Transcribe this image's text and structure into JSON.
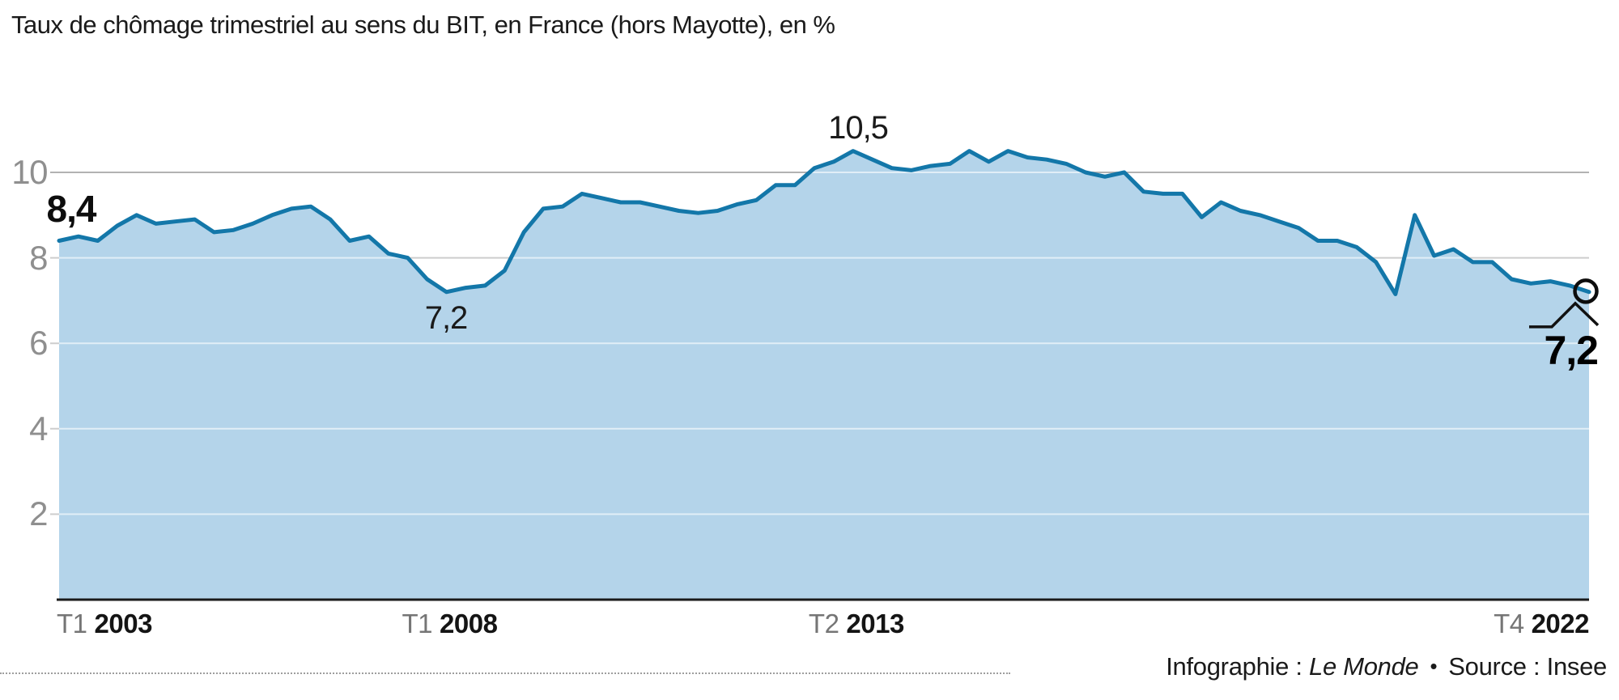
{
  "title": "Taux de chômage trimestriel au sens du BIT, en France (hors Mayotte), en %",
  "footer": {
    "credit_prefix": "Infographie : ",
    "credit_brand": "Le Monde",
    "separator": "•",
    "source_label": "Source : Insee"
  },
  "colors": {
    "line": "#1377a9",
    "fill": "#b4d4ea",
    "grid_major": "#b2b2b2",
    "grid_minor": "#cdcdcd",
    "grid_overlay": "rgba(255,255,255,0.6)",
    "axis": "#1a1a1a",
    "y_tick_text": "#8f8f8f",
    "x_tick_prefix": "#757575",
    "x_tick_year": "#141414",
    "annotation": "#0d0d0d"
  },
  "chart_data": {
    "type": "area",
    "title": "Taux de chômage trimestriel au sens du BIT, en France (hors Mayotte), en %",
    "unit": "%",
    "frequency": "quarterly",
    "x_range": {
      "start": "T1 2003",
      "end": "T4 2022"
    },
    "n_points": 80,
    "ylim": [
      0,
      11
    ],
    "y_ticks": [
      2,
      4,
      6,
      8,
      10
    ],
    "grid": "horizontal",
    "legend": "none",
    "values": [
      8.4,
      8.5,
      8.4,
      8.75,
      9.0,
      8.8,
      8.85,
      8.9,
      8.6,
      8.65,
      8.8,
      9.0,
      9.15,
      9.2,
      8.9,
      8.4,
      8.5,
      8.1,
      8.0,
      7.5,
      7.2,
      7.3,
      7.35,
      7.7,
      8.6,
      9.15,
      9.2,
      9.5,
      9.4,
      9.3,
      9.3,
      9.2,
      9.1,
      9.05,
      9.1,
      9.25,
      9.35,
      9.7,
      9.7,
      10.1,
      10.25,
      10.5,
      10.3,
      10.1,
      10.05,
      10.15,
      10.2,
      10.5,
      10.25,
      10.5,
      10.35,
      10.3,
      10.2,
      10.0,
      9.9,
      10.0,
      9.55,
      9.5,
      9.5,
      8.95,
      9.3,
      9.1,
      9.0,
      8.85,
      8.7,
      8.4,
      8.4,
      8.25,
      7.9,
      7.15,
      9.0,
      8.05,
      8.2,
      7.9,
      7.9,
      7.5,
      7.4,
      7.45,
      7.35,
      7.2
    ],
    "x_tick_labels": [
      {
        "prefix": "T1",
        "year": "2003",
        "index": 0,
        "align": "left"
      },
      {
        "prefix": "T1",
        "year": "2008",
        "index": 20,
        "align": "center"
      },
      {
        "prefix": "T2",
        "year": "2013",
        "index": 41,
        "align": "center"
      },
      {
        "prefix": "T4",
        "year": "2022",
        "index": 79,
        "align": "right"
      }
    ],
    "point_labels": [
      {
        "index": 0,
        "quarter": "T1 2003",
        "value": 8.4,
        "label": "8,4",
        "emphasis": "bold",
        "position": "above-start"
      },
      {
        "index": 20,
        "quarter": "T1 2008",
        "value": 7.2,
        "label": "7,2",
        "emphasis": "regular",
        "position": "below"
      },
      {
        "index": 41,
        "quarter": "T2 2013",
        "value": 10.5,
        "label": "10,5",
        "emphasis": "regular",
        "position": "above"
      },
      {
        "index": 79,
        "quarter": "T4 2022",
        "value": 7.2,
        "label": "7,2",
        "emphasis": "callout",
        "position": "callout",
        "marker": "open-circle"
      }
    ]
  }
}
